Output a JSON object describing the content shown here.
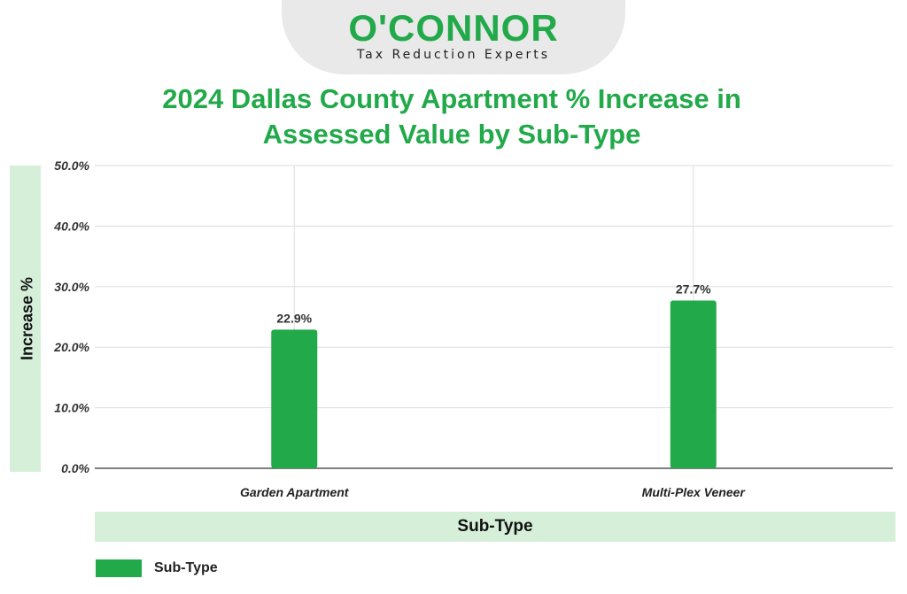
{
  "logo": {
    "brand": "O'CONNOR",
    "tagline": "Tax Reduction Experts"
  },
  "chart_data": {
    "type": "bar",
    "title": "2024 Dallas County Apartment % Increase in Assessed Value by Sub-Type",
    "title_lines": [
      "2024 Dallas County Apartment % Increase in",
      "Assessed Value by Sub-Type"
    ],
    "xlabel": "Sub-Type",
    "ylabel": "Increase %",
    "categories": [
      "Garden Apartment",
      "Multi-Plex Veneer"
    ],
    "series": [
      {
        "name": "Sub-Type",
        "values": [
          22.9,
          27.7
        ],
        "data_labels": [
          "22.9%",
          "27.7%"
        ]
      }
    ],
    "ylim": [
      0,
      50
    ],
    "yticks": [
      0,
      10,
      20,
      30,
      40,
      50
    ],
    "ytick_labels": [
      "0.0%",
      "10.0%",
      "20.0%",
      "30.0%",
      "40.0%",
      "50.0%"
    ],
    "grid": true,
    "legend_position": "bottom-left"
  },
  "colors": {
    "brand_green": "#22a94a",
    "label_band": "#d5efd9",
    "gridline": "#dddddd",
    "axis": "#555555"
  }
}
